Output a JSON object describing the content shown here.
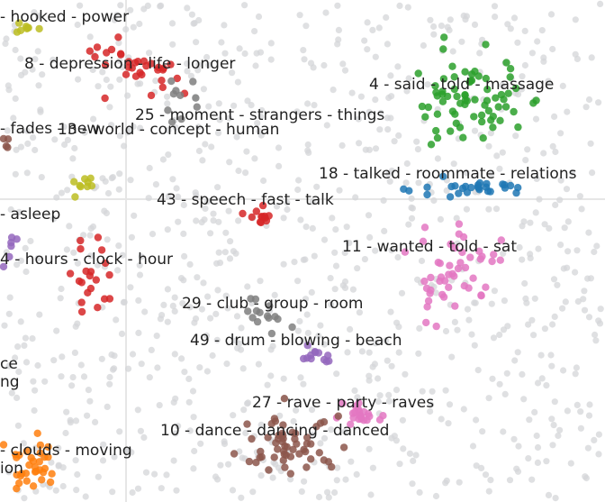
{
  "chart_data": {
    "type": "scatter",
    "title": "",
    "xlabel": "",
    "ylabel": "",
    "grid": true,
    "legend": "none",
    "colors": {
      "background_points": "#d4d6d8",
      "red": "#d62728",
      "green": "#2ca02c",
      "blue": "#1f77b4",
      "pink": "#e377c2",
      "purple": "#9467bd",
      "brown": "#8c564b",
      "grey": "#7f7f7f",
      "olive": "#bcbd22",
      "orange": "#ff7f0e"
    },
    "clusters": [
      {
        "label": "hooked - power",
        "color": "olive",
        "center": [
          25,
          30
        ],
        "spread": [
          12,
          10
        ],
        "count": 8
      },
      {
        "label": "8 - depression - life - longer",
        "color": "red",
        "center": [
          150,
          75
        ],
        "spread": [
          60,
          25
        ],
        "count": 32
      },
      {
        "label": "4 - said - told - massage",
        "color": "green",
        "center": [
          525,
          110
        ],
        "spread": [
          45,
          38
        ],
        "count": 70
      },
      {
        "label": "25 - moment - strangers - things",
        "color": "grey",
        "center": [
          200,
          110
        ],
        "spread": [
          20,
          20
        ],
        "count": 10
      },
      {
        "label": "fades - new",
        "color": "brown",
        "center": [
          8,
          160
        ],
        "spread": [
          8,
          8
        ],
        "count": 4
      },
      {
        "label": "13 - world - concept - human",
        "color": "olive",
        "center": [
          100,
          205
        ],
        "spread": [
          20,
          15
        ],
        "count": 9
      },
      {
        "label": "18 - talked - roommate - relations",
        "color": "blue",
        "center": [
          525,
          208
        ],
        "spread": [
          55,
          8
        ],
        "count": 28
      },
      {
        "label": "43 - speech - fast - talk",
        "color": "red",
        "center": [
          285,
          238
        ],
        "spread": [
          15,
          7
        ],
        "count": 12
      },
      {
        "label": "asleep",
        "color": "purple",
        "center": [
          12,
          265
        ],
        "spread": [
          10,
          18
        ],
        "count": 6
      },
      {
        "label": "11 - wanted - told - sat",
        "color": "pink",
        "center": [
          500,
          295
        ],
        "spread": [
          45,
          40
        ],
        "count": 48
      },
      {
        "label": "4 - hours - clock - hour",
        "color": "red",
        "center": [
          95,
          310
        ],
        "spread": [
          22,
          30
        ],
        "count": 20
      },
      {
        "label": "29 - club - group - room",
        "color": "grey",
        "center": [
          300,
          345
        ],
        "spread": [
          30,
          20
        ],
        "count": 14
      },
      {
        "label": "49 - drum - blowing - beach",
        "color": "purple",
        "center": [
          350,
          395
        ],
        "spread": [
          15,
          12
        ],
        "count": 12
      },
      {
        "label": "27 - rave - party - raves",
        "color": "pink",
        "center": [
          400,
          462
        ],
        "spread": [
          20,
          10
        ],
        "count": 22
      },
      {
        "label": "10 - dance - dancing - danced",
        "color": "brown",
        "center": [
          325,
          492
        ],
        "spread": [
          45,
          25
        ],
        "count": 55
      },
      {
        "label": "clouds - moving",
        "color": "orange",
        "center": [
          35,
          520
        ],
        "spread": [
          28,
          25
        ],
        "count": 32
      }
    ],
    "annotations": [
      "- hooked - power",
      "8 - depression - life - longer",
      "4 - said - told - massage",
      "25 - moment - strangers - things",
      "- fades - new",
      "13 - world - concept - human",
      "18 - talked - roommate - relations",
      "43 - speech - fast - talk",
      "- asleep",
      "11 - wanted - told - sat",
      "4 - hours - clock - hour",
      "29 - club - group - room",
      "49 - drum - blowing - beach",
      "ce",
      "ng",
      "27 - rave - party - raves",
      "10 - dance - dancing - danced",
      "- clouds - moving",
      "ion"
    ],
    "background_point_count": 900
  }
}
